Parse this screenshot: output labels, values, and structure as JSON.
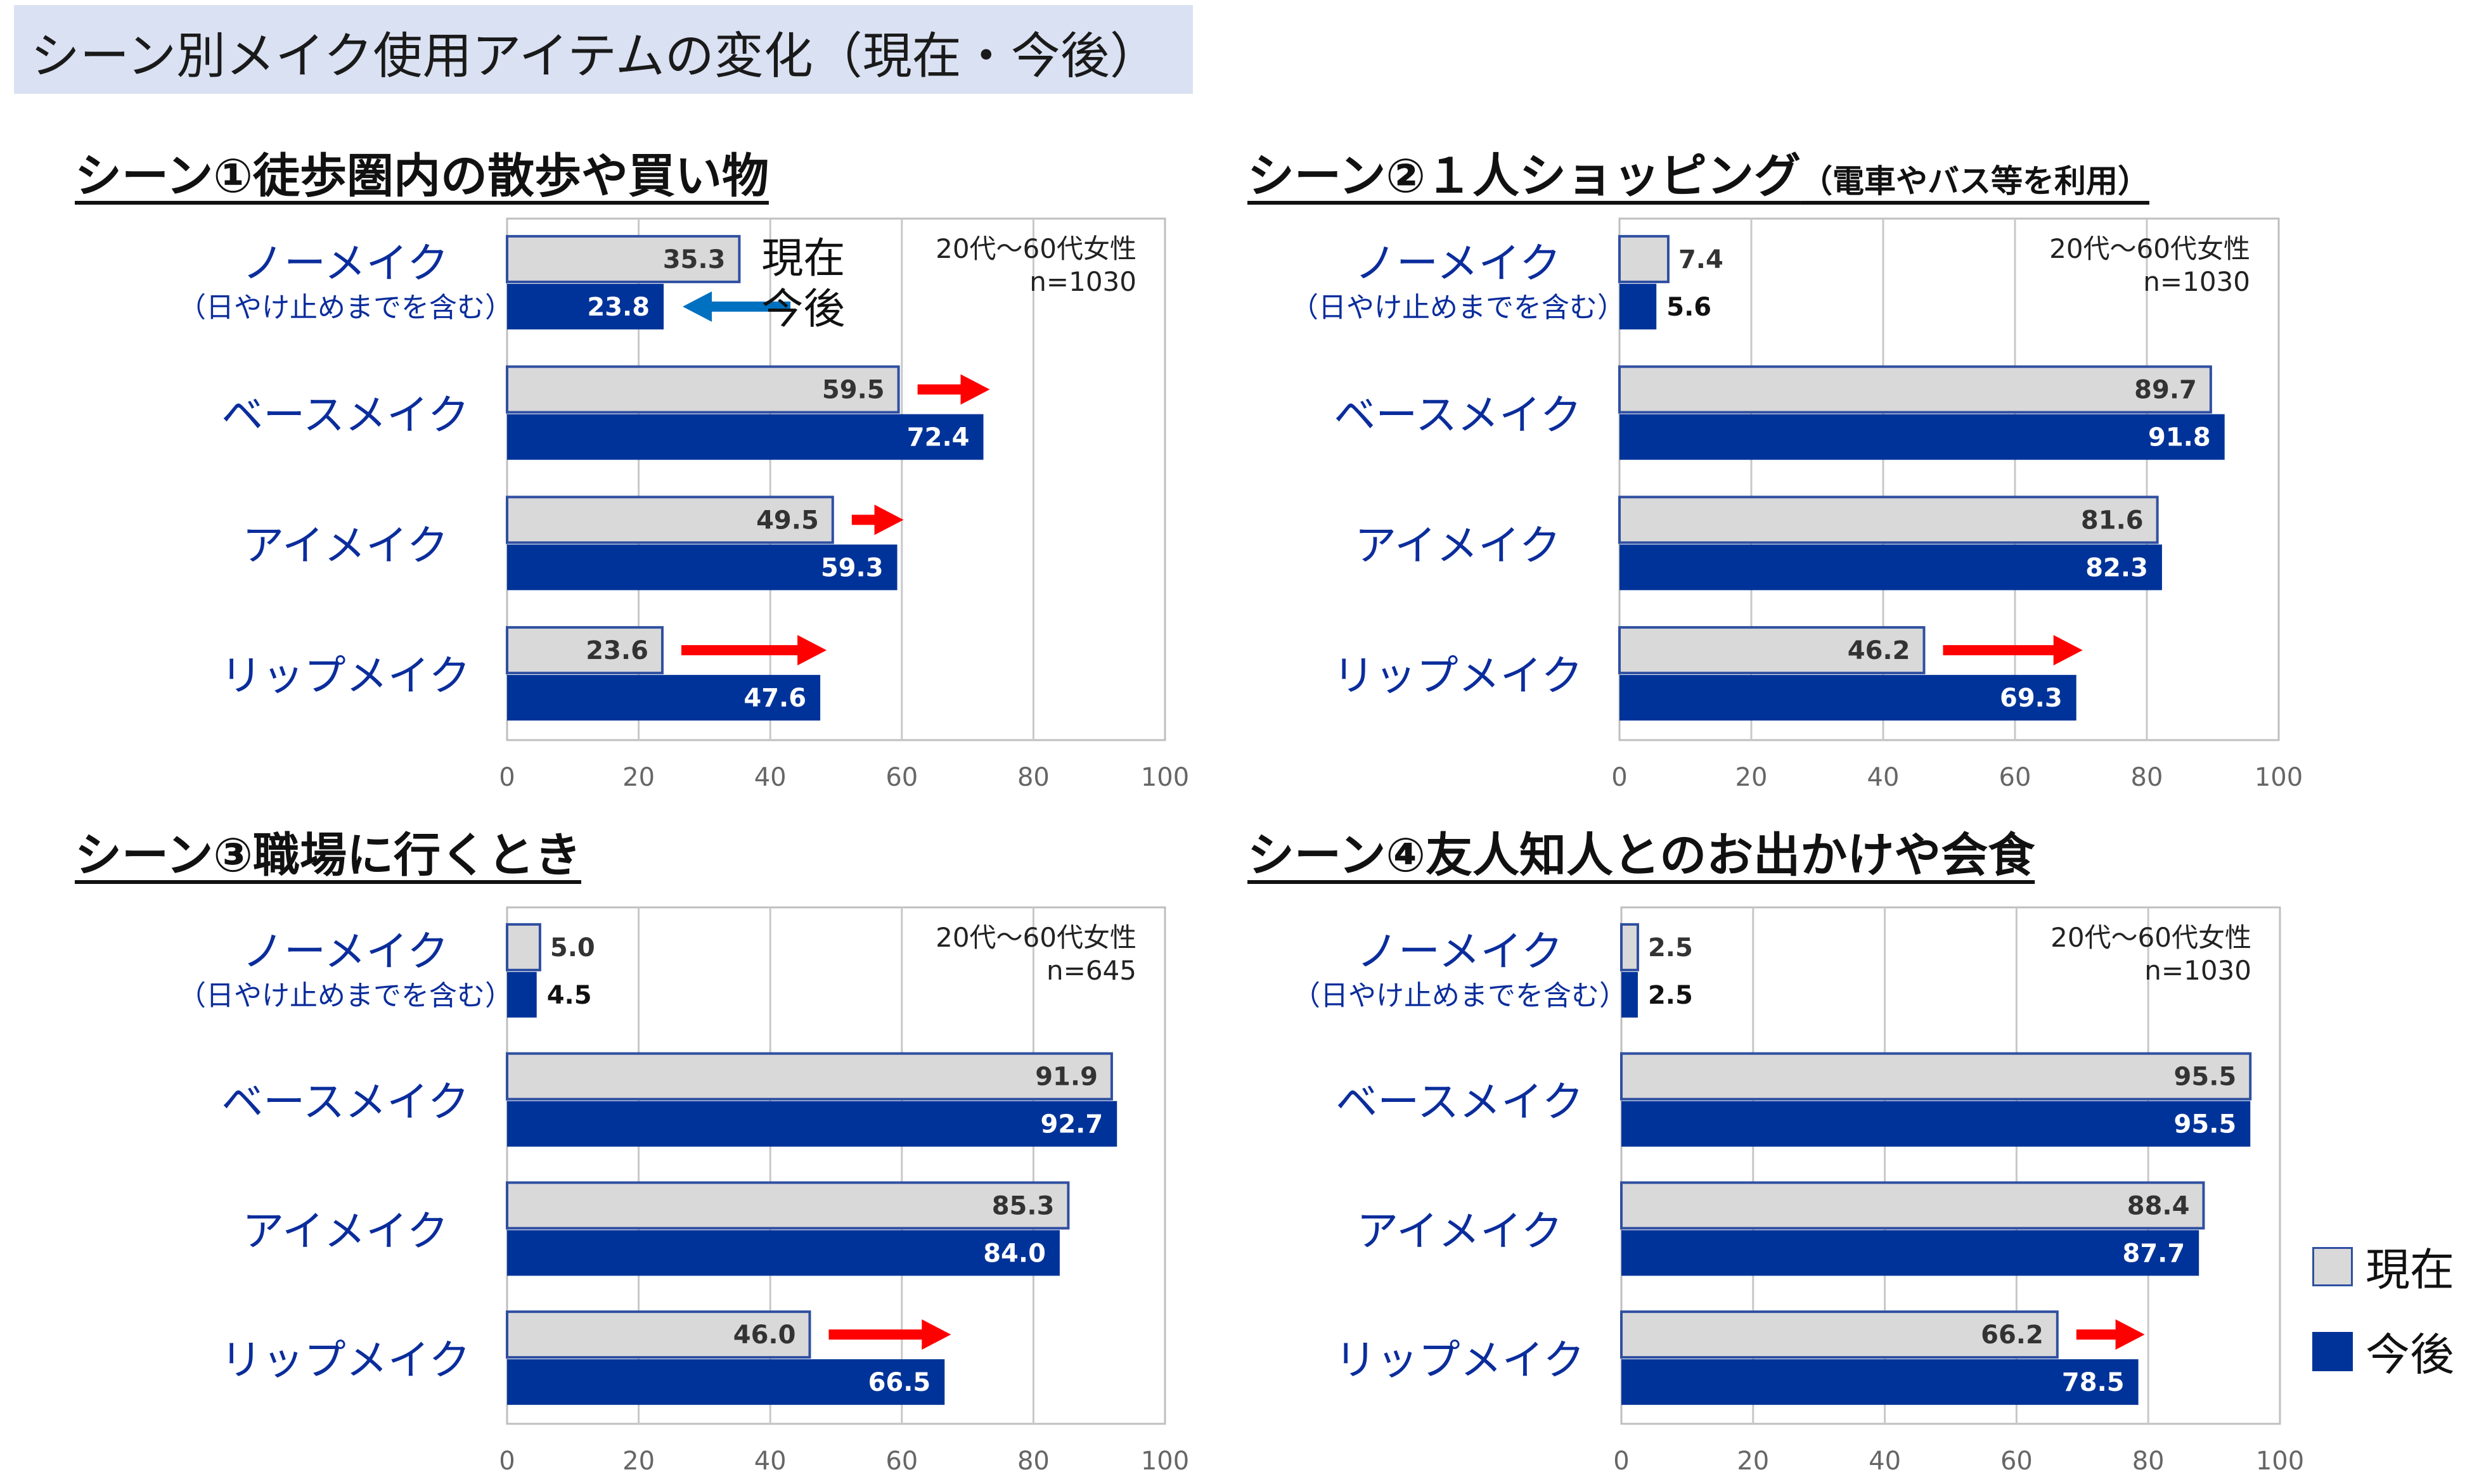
{
  "header": {
    "title": "シーン別メイク使用アイテムの変化（現在・今後）"
  },
  "colors": {
    "current_fill": "#d9d9d9",
    "current_stroke": "#2f4fa0",
    "future_fill": "#003399",
    "grid": "#c8c8c8",
    "arrow_up": "#ff0000",
    "arrow_down": "#0070c0"
  },
  "series_names": [
    "現在",
    "今後"
  ],
  "legend": {
    "current": "現在",
    "future": "今後"
  },
  "chart_data": [
    {
      "type": "bar",
      "orientation": "horizontal",
      "title": "シーン①徒歩圏内の散歩や買い物",
      "title_sub": "",
      "note": [
        "20代～60代女性",
        "n=1030"
      ],
      "categories": [
        "ノーメイク",
        "ベースメイク",
        "アイメイク",
        "リップメイク"
      ],
      "category_sub": [
        "（日やけ止めまでを含む）",
        "",
        "",
        ""
      ],
      "series": [
        {
          "name": "現在",
          "values": [
            35.3,
            59.5,
            49.5,
            23.6
          ]
        },
        {
          "name": "今後",
          "values": [
            23.8,
            72.4,
            59.3,
            47.6
          ]
        }
      ],
      "xlim": [
        0,
        100
      ],
      "xticks": [
        "0",
        "20",
        "40",
        "60",
        "80",
        "100"
      ],
      "inline_legend": [
        "現在",
        "今後"
      ],
      "arrows": [
        {
          "category": 0,
          "dir": "down"
        },
        {
          "category": 1,
          "dir": "up"
        },
        {
          "category": 2,
          "dir": "up"
        },
        {
          "category": 3,
          "dir": "up"
        }
      ]
    },
    {
      "type": "bar",
      "orientation": "horizontal",
      "title": "シーン②１人ショッピング",
      "title_sub": "（電車やバス等を利用）",
      "note": [
        "20代～60代女性",
        "n=1030"
      ],
      "categories": [
        "ノーメイク",
        "ベースメイク",
        "アイメイク",
        "リップメイク"
      ],
      "category_sub": [
        "（日やけ止めまでを含む）",
        "",
        "",
        ""
      ],
      "series": [
        {
          "name": "現在",
          "values": [
            7.4,
            89.7,
            81.6,
            46.2
          ]
        },
        {
          "name": "今後",
          "values": [
            5.6,
            91.8,
            82.3,
            69.3
          ]
        }
      ],
      "xlim": [
        0,
        100
      ],
      "xticks": [
        "0",
        "20",
        "40",
        "60",
        "80",
        "100"
      ],
      "arrows": [
        {
          "category": 3,
          "dir": "up"
        }
      ]
    },
    {
      "type": "bar",
      "orientation": "horizontal",
      "title": "シーン③職場に行くとき",
      "title_sub": "",
      "note": [
        "20代～60代女性",
        "n=645"
      ],
      "categories": [
        "ノーメイク",
        "ベースメイク",
        "アイメイク",
        "リップメイク"
      ],
      "category_sub": [
        "（日やけ止めまでを含む）",
        "",
        "",
        ""
      ],
      "series": [
        {
          "name": "現在",
          "values": [
            5.0,
            91.9,
            85.3,
            46.0
          ]
        },
        {
          "name": "今後",
          "values": [
            4.5,
            92.7,
            84.0,
            66.5
          ]
        }
      ],
      "xlim": [
        0,
        100
      ],
      "xticks": [
        "0",
        "20",
        "40",
        "60",
        "80",
        "100"
      ],
      "arrows": [
        {
          "category": 3,
          "dir": "up"
        }
      ]
    },
    {
      "type": "bar",
      "orientation": "horizontal",
      "title": "シーン④友人知人とのお出かけや会食",
      "title_sub": "",
      "note": [
        "20代～60代女性",
        "n=1030"
      ],
      "categories": [
        "ノーメイク",
        "ベースメイク",
        "アイメイク",
        "リップメイク"
      ],
      "category_sub": [
        "（日やけ止めまでを含む）",
        "",
        "",
        ""
      ],
      "series": [
        {
          "name": "現在",
          "values": [
            2.5,
            95.5,
            88.4,
            66.2
          ]
        },
        {
          "name": "今後",
          "values": [
            2.5,
            95.5,
            87.7,
            78.5
          ]
        }
      ],
      "xlim": [
        0,
        100
      ],
      "xticks": [
        "0",
        "20",
        "40",
        "60",
        "80",
        "100"
      ],
      "arrows": [
        {
          "category": 3,
          "dir": "up"
        }
      ]
    }
  ]
}
